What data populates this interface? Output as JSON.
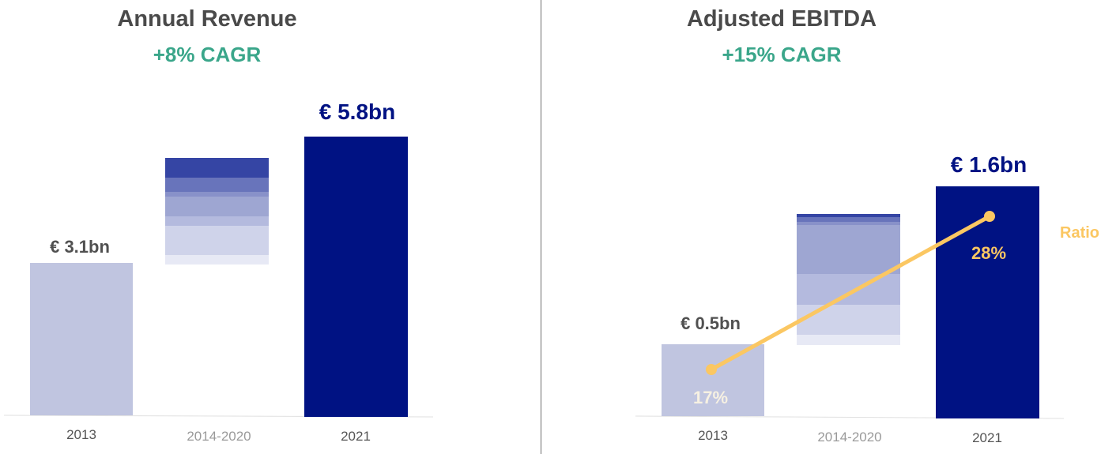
{
  "charts": [
    {
      "title": "Annual Revenue",
      "subtitle": "+8% CAGR",
      "chart_data": {
        "type": "bar",
        "categories": [
          "2013",
          "2014-2020",
          "2021"
        ],
        "values": [
          3.1,
          null,
          5.8
        ],
        "value_labels": [
          "€ 3.1bn",
          "",
          "€ 5.8bn"
        ],
        "bridge_range": [
          3.1,
          5.8
        ],
        "unit": "€ bn",
        "colors": {
          "start": "#c0c5e0",
          "end": "#001283",
          "bridge": [
            "#3545a4",
            "#6874bb",
            "#8891c9",
            "#9ea6d2",
            "#cfd3ea",
            "#e7e9f5"
          ]
        }
      }
    },
    {
      "title": "Adjusted EBITDA",
      "subtitle": "+15% CAGR",
      "chart_data": {
        "type": "bar",
        "categories": [
          "2013",
          "2014-2020",
          "2021"
        ],
        "values": [
          0.5,
          null,
          1.6
        ],
        "value_labels": [
          "€ 0.5bn",
          "",
          "€ 1.6bn"
        ],
        "bridge_range": [
          0.5,
          1.6
        ],
        "unit": "€ bn",
        "ratio_series": {
          "name": "Ratio",
          "values": [
            17,
            28
          ],
          "labels": [
            "17%",
            "28%"
          ],
          "color": "#fbc762"
        },
        "colors": {
          "start": "#c0c5e0",
          "end": "#001283",
          "bridge": [
            "#3545a4",
            "#6874bb",
            "#9ea6d2",
            "#b4bade",
            "#cfd3ea",
            "#e7e9f5"
          ]
        }
      }
    }
  ]
}
